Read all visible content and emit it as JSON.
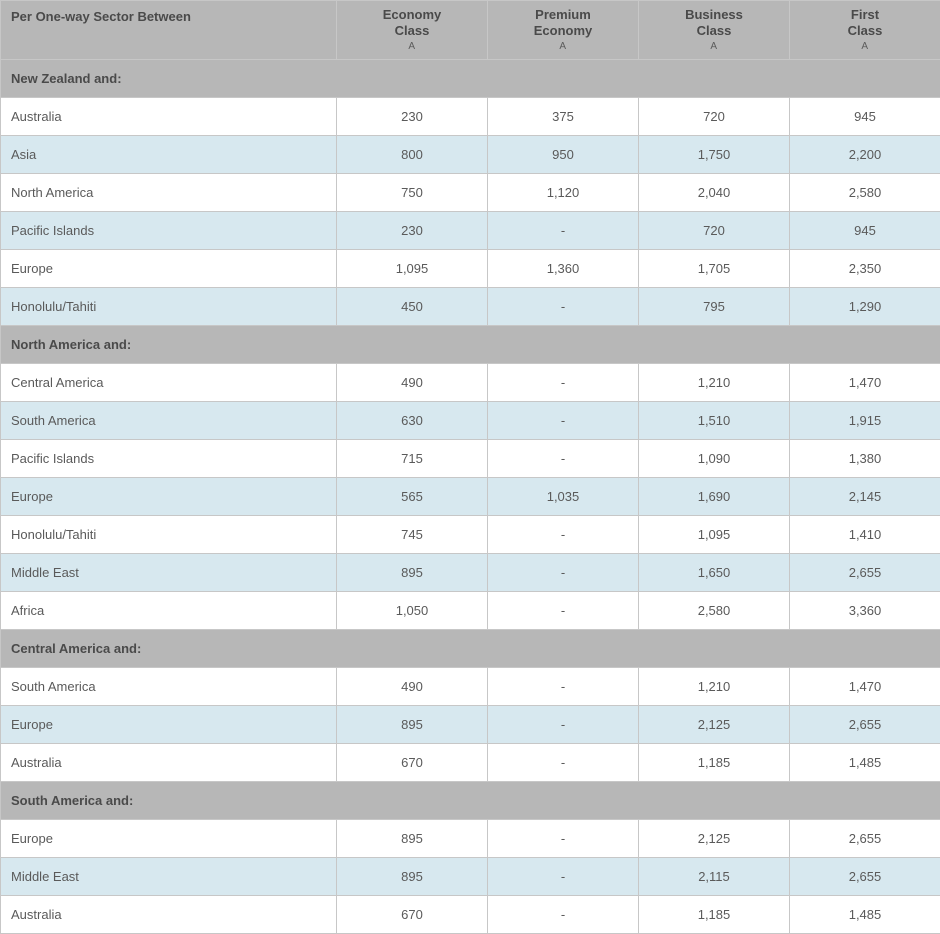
{
  "colors": {
    "header_bg": "#b7b7b7",
    "row_odd_bg": "#ffffff",
    "row_even_bg": "#d7e8ef",
    "border": "#c7c7c7",
    "text": "#4a4a4a"
  },
  "header": {
    "sector": "Per One-way Sector Between",
    "economy": "Economy\nClass",
    "premium": "Premium\nEconomy",
    "business": "Business\nClass",
    "first": "First\nClass",
    "sub_icon": "A"
  },
  "sections": [
    {
      "title": "New Zealand and:",
      "rows": [
        {
          "dest": "Australia",
          "economy": "230",
          "premium": "375",
          "business": "720",
          "first": "945"
        },
        {
          "dest": "Asia",
          "economy": "800",
          "premium": "950",
          "business": "1,750",
          "first": "2,200"
        },
        {
          "dest": "North America",
          "economy": "750",
          "premium": "1,120",
          "business": "2,040",
          "first": "2,580"
        },
        {
          "dest": "Pacific Islands",
          "economy": "230",
          "premium": "-",
          "business": "720",
          "first": "945"
        },
        {
          "dest": "Europe",
          "economy": "1,095",
          "premium": "1,360",
          "business": "1,705",
          "first": "2,350"
        },
        {
          "dest": "Honolulu/Tahiti",
          "economy": "450",
          "premium": "-",
          "business": "795",
          "first": "1,290"
        }
      ]
    },
    {
      "title": "North America and:",
      "rows": [
        {
          "dest": "Central America",
          "economy": "490",
          "premium": "-",
          "business": "1,210",
          "first": "1,470"
        },
        {
          "dest": "South America",
          "economy": "630",
          "premium": "-",
          "business": "1,510",
          "first": "1,915"
        },
        {
          "dest": "Pacific Islands",
          "economy": "715",
          "premium": "-",
          "business": "1,090",
          "first": "1,380"
        },
        {
          "dest": "Europe",
          "economy": "565",
          "premium": "1,035",
          "business": "1,690",
          "first": "2,145"
        },
        {
          "dest": "Honolulu/Tahiti",
          "economy": "745",
          "premium": "-",
          "business": "1,095",
          "first": "1,410"
        },
        {
          "dest": "Middle East",
          "economy": "895",
          "premium": "-",
          "business": "1,650",
          "first": "2,655"
        },
        {
          "dest": "Africa",
          "economy": "1,050",
          "premium": "-",
          "business": "2,580",
          "first": "3,360"
        }
      ]
    },
    {
      "title": "Central America and:",
      "rows": [
        {
          "dest": "South America",
          "economy": "490",
          "premium": "-",
          "business": "1,210",
          "first": "1,470"
        },
        {
          "dest": "Europe",
          "economy": "895",
          "premium": "-",
          "business": "2,125",
          "first": "2,655"
        },
        {
          "dest": "Australia",
          "economy": "670",
          "premium": "-",
          "business": "1,185",
          "first": "1,485"
        }
      ]
    },
    {
      "title": "South America and:",
      "rows": [
        {
          "dest": "Europe",
          "economy": "895",
          "premium": "-",
          "business": "2,125",
          "first": "2,655"
        },
        {
          "dest": "Middle East",
          "economy": "895",
          "premium": "-",
          "business": "2,115",
          "first": "2,655"
        },
        {
          "dest": "Australia",
          "economy": "670",
          "premium": "-",
          "business": "1,185",
          "first": "1,485"
        }
      ]
    }
  ]
}
